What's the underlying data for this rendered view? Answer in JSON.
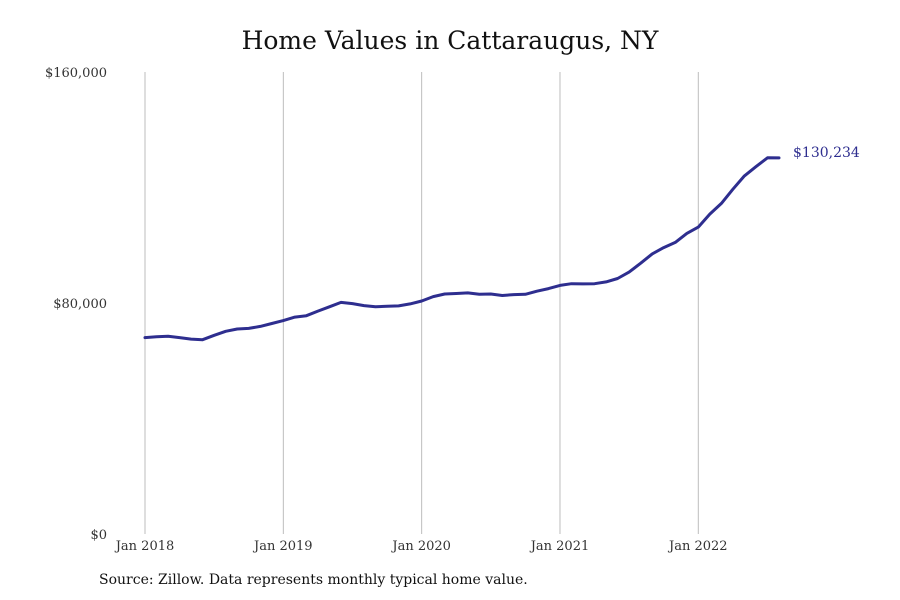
{
  "chart_data": {
    "type": "line",
    "title": "Home Values in Cattaraugus, NY",
    "source": "Source: Zillow. Data represents monthly typical home value.",
    "ylim": [
      0,
      160000
    ],
    "yticks": [
      {
        "value": 0,
        "label": "$0"
      },
      {
        "value": 80000,
        "label": "$80,000"
      },
      {
        "value": 160000,
        "label": "$160,000"
      }
    ],
    "xticks": [
      {
        "value": "2018-01",
        "label": "Jan 2018"
      },
      {
        "value": "2019-01",
        "label": "Jan 2019"
      },
      {
        "value": "2020-01",
        "label": "Jan 2020"
      },
      {
        "value": "2021-01",
        "label": "Jan 2021"
      },
      {
        "value": "2022-01",
        "label": "Jan 2022"
      }
    ],
    "grid": "vertical",
    "line_color": "#2e2e8f",
    "end_label": "$130,234",
    "series": [
      {
        "x": [
          "2018-01",
          "2018-02",
          "2018-03",
          "2018-04",
          "2018-05",
          "2018-06",
          "2018-07",
          "2018-08",
          "2018-09",
          "2018-10",
          "2018-11",
          "2018-12",
          "2019-01",
          "2019-02",
          "2019-03",
          "2019-04",
          "2019-05",
          "2019-06",
          "2019-07",
          "2019-08",
          "2019-09",
          "2019-10",
          "2019-11",
          "2019-12",
          "2020-01",
          "2020-02",
          "2020-03",
          "2020-04",
          "2020-05",
          "2020-06",
          "2020-07",
          "2020-08",
          "2020-09",
          "2020-10",
          "2020-11",
          "2020-12",
          "2021-01",
          "2021-02",
          "2021-03",
          "2021-04",
          "2021-05",
          "2021-06",
          "2021-07",
          "2021-08",
          "2021-09",
          "2021-10",
          "2021-11",
          "2021-12",
          "2022-01",
          "2022-02",
          "2022-03",
          "2022-04",
          "2022-05",
          "2022-06",
          "2022-07",
          "2022-08"
        ],
        "values": [
          68000,
          68300,
          68500,
          68000,
          67500,
          67300,
          68800,
          70200,
          71000,
          71200,
          71900,
          72900,
          73900,
          75100,
          75600,
          77200,
          78700,
          80200,
          79800,
          79100,
          78700,
          78900,
          79000,
          79700,
          80700,
          82200,
          83100,
          83300,
          83500,
          83000,
          83100,
          82600,
          82900,
          83000,
          84100,
          85000,
          86100,
          86700,
          86600,
          86700,
          87300,
          88500,
          90700,
          93800,
          97000,
          99200,
          101000,
          104100,
          106300,
          110800,
          114500,
          119400,
          124000,
          127200,
          130300,
          130234
        ]
      }
    ]
  }
}
